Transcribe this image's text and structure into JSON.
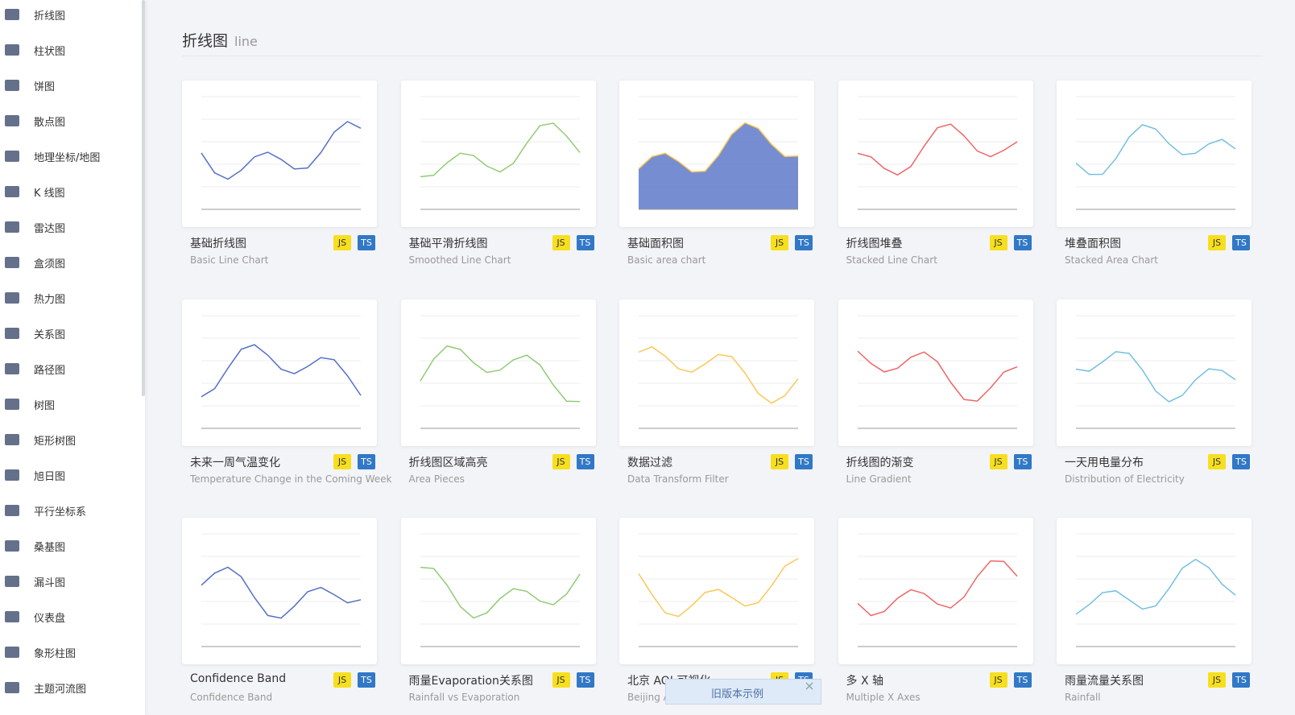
{
  "sidebar": {
    "items": [
      "折线图",
      "柱状图",
      "饼图",
      "散点图",
      "地理坐标/地图",
      "K 线图",
      "雷达图",
      "盒须图",
      "热力图",
      "关系图",
      "路径图",
      "树图",
      "矩形树图",
      "旭日图",
      "平行坐标系",
      "桑基图",
      "漏斗图",
      "仪表盘",
      "象形柱图",
      "主题河流图"
    ]
  },
  "header": {
    "title": "折线图",
    "subtitle": "line"
  },
  "cards": [
    {
      "title": "基础折线图",
      "subtitle": "Basic Line Chart",
      "badges": [
        "JS",
        "TS"
      ]
    },
    {
      "title": "基础平滑折线图",
      "subtitle": "Smoothed Line Chart",
      "badges": [
        "JS",
        "TS"
      ]
    },
    {
      "title": "基础面积图",
      "subtitle": "Basic area chart",
      "badges": [
        "JS",
        "TS"
      ]
    },
    {
      "title": "折线图堆叠",
      "subtitle": "Stacked Line Chart",
      "badges": [
        "JS",
        "TS"
      ]
    },
    {
      "title": "堆叠面积图",
      "subtitle": "Stacked Area Chart",
      "badges": [
        "JS",
        "TS"
      ]
    },
    {
      "title": "未来一周气温变化",
      "subtitle": "Temperature Change in the Coming Week",
      "badges": [
        "JS",
        "TS"
      ]
    },
    {
      "title": "折线图区域高亮",
      "subtitle": "Area Pieces",
      "badges": [
        "JS",
        "TS"
      ]
    },
    {
      "title": "数据过滤",
      "subtitle": "Data Transform Filter",
      "badges": [
        "JS",
        "TS"
      ]
    },
    {
      "title": "折线图的渐变",
      "subtitle": "Line Gradient",
      "badges": [
        "JS",
        "TS"
      ]
    },
    {
      "title": "一天用电量分布",
      "subtitle": "Distribution of Electricity",
      "badges": [
        "JS",
        "TS"
      ]
    },
    {
      "title": "Confidence Band",
      "subtitle": "Confidence Band",
      "badges": [
        "JS",
        "TS"
      ]
    },
    {
      "title": "雨量Evaporation关系图",
      "subtitle": "Rainfall vs Evaporation",
      "badges": [
        "JS",
        "TS"
      ]
    },
    {
      "title": "北京 AQI 可视化",
      "subtitle": "Beijing AQI",
      "badges": [
        "JS",
        "TS"
      ]
    },
    {
      "title": "多 X 轴",
      "subtitle": "Multiple X Axes",
      "badges": [
        "JS",
        "TS"
      ]
    },
    {
      "title": "雨量流量关系图",
      "subtitle": "Rainfall",
      "badges": [
        "JS",
        "TS"
      ]
    }
  ],
  "popup": {
    "label": "旧版本示例"
  }
}
